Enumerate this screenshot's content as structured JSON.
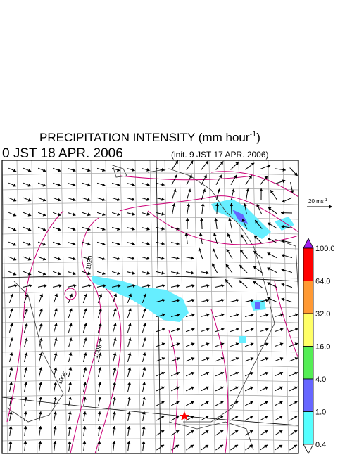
{
  "header": {
    "title": "PRECIPITATION INTENSITY (mm hour",
    "title_exponent": "-1",
    "title_close": ")",
    "valid_time": "0 JST 18 APR. 2006",
    "init_time": "(init. 9 JST 17 APR. 2006)"
  },
  "vector_reference": {
    "label": "20 ms",
    "exponent": "-1"
  },
  "colorbar": {
    "levels": [
      "100.0",
      "64.0",
      "32.0",
      "16.0",
      "4.0",
      "1.0",
      "0.4"
    ],
    "colors": [
      "#a020f0",
      "#ff0000",
      "#ff9933",
      "#ffff66",
      "#55ee55",
      "#6666ff",
      "#55ffff",
      "#ffffff"
    ]
  },
  "contour_labels": [
    "1020",
    "1008",
    "1005"
  ]
}
